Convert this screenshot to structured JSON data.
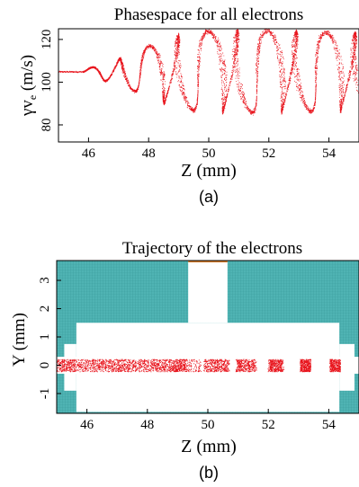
{
  "colors": {
    "particles": "#e8141c",
    "wall": "#4fb3b3",
    "wall_grid": "#2f8f8f",
    "top_line": "#d07a2a",
    "frame": "#000000"
  },
  "chart_data": [
    {
      "type": "scatter",
      "title": "Phasespace for all electrons",
      "xlabel": "Z (mm)",
      "ylabel_main": "γv",
      "ylabel_sub": "e",
      "ylabel_unit": " (m/s)",
      "caption": "(a)",
      "xlim": [
        45,
        55
      ],
      "ylim": [
        72,
        125
      ],
      "xticks": [
        46,
        48,
        50,
        52,
        54
      ],
      "yticks": [
        80,
        100,
        120
      ],
      "series": [
        {
          "description_points": "single electron phase-space band",
          "baseline": 105,
          "start_z": 45.0,
          "oscillation_start_z": 45.8,
          "wavelength_mm": 0.98,
          "envelope": [
            {
              "z": 45.8,
              "amp": 0
            },
            {
              "z": 46.2,
              "amp": 3
            },
            {
              "z": 47.0,
              "amp": 6
            },
            {
              "z": 48.0,
              "amp": 12
            },
            {
              "z": 49.0,
              "amp": 17
            },
            {
              "z": 50.0,
              "amp": 19
            },
            {
              "z": 52.0,
              "amp": 19
            },
            {
              "z": 55.0,
              "amp": 18
            }
          ]
        }
      ]
    },
    {
      "type": "scatter",
      "title": "Trajectory of the electrons",
      "xlabel": "Z (mm)",
      "ylabel": "Y (mm)",
      "caption": "(b)",
      "xlim": [
        45,
        55
      ],
      "ylim": [
        -1.7,
        3.7
      ],
      "xticks": [
        46,
        48,
        50,
        52,
        54
      ],
      "yticks": [
        -1,
        0,
        1,
        2,
        3
      ],
      "beam": {
        "y_center": 0,
        "y_half_width": 0.22,
        "bunch_start_z": 49.3,
        "bunch_period_mm": 0.98
      },
      "geometry": {
        "cavity_z": [
          45.65,
          54.35
        ],
        "cavity_y": [
          -1.65,
          1.5
        ],
        "port_z": [
          49.35,
          50.65
        ],
        "port_y": [
          1.5,
          3.7
        ],
        "left_step_z": [
          45.25,
          45.65
        ],
        "left_step_y": [
          -0.9,
          0.75
        ],
        "right_step_z": [
          54.35,
          54.85
        ],
        "right_step_y": [
          -0.9,
          0.75
        ],
        "beam_pipe_y": [
          -0.3,
          0.3
        ]
      }
    }
  ]
}
